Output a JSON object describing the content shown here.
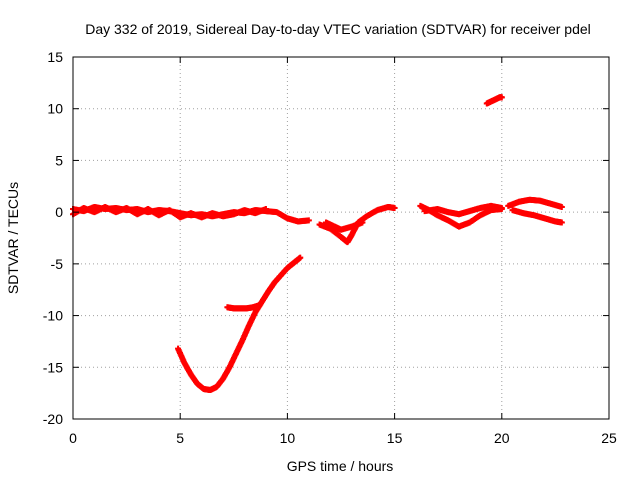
{
  "chart_data": {
    "type": "scatter",
    "title": "Day 332 of 2019, Sidereal Day-to-day VTEC variation (SDTVAR) for receiver pdel",
    "xlabel": "GPS time / hours",
    "ylabel": "SDTVAR / TECUs",
    "xlim": [
      0,
      25
    ],
    "ylim": [
      -20,
      15
    ],
    "xticks": [
      0,
      5,
      10,
      15,
      20,
      25
    ],
    "yticks": [
      -20,
      -15,
      -10,
      -5,
      0,
      5,
      10,
      15
    ],
    "grid": true,
    "marker_color": "#ff0000",
    "series": [
      {
        "name": "band-a",
        "points": [
          [
            0.0,
            0.3
          ],
          [
            0.5,
            0.1
          ],
          [
            1.0,
            0.5
          ],
          [
            1.5,
            0.3
          ],
          [
            2.0,
            0.4
          ],
          [
            2.5,
            0.2
          ],
          [
            3.0,
            0.3
          ],
          [
            3.5,
            0.0
          ],
          [
            4.0,
            0.2
          ],
          [
            4.5,
            0.1
          ],
          [
            5.0,
            -0.1
          ],
          [
            5.5,
            -0.3
          ],
          [
            6.0,
            -0.2
          ],
          [
            6.5,
            -0.4
          ],
          [
            7.0,
            -0.2
          ],
          [
            7.5,
            0.0
          ],
          [
            8.0,
            -0.1
          ],
          [
            8.5,
            0.2
          ],
          [
            9.0,
            0.1
          ],
          [
            9.5,
            0.0
          ],
          [
            10.0,
            -0.6
          ],
          [
            10.5,
            -0.9
          ],
          [
            11.0,
            -0.8
          ]
        ]
      },
      {
        "name": "band-b",
        "points": [
          [
            0.0,
            -0.2
          ],
          [
            0.5,
            0.4
          ],
          [
            1.0,
            0.0
          ],
          [
            1.5,
            0.5
          ],
          [
            2.0,
            0.0
          ],
          [
            2.5,
            0.4
          ],
          [
            3.0,
            -0.2
          ],
          [
            3.5,
            0.3
          ],
          [
            4.0,
            -0.3
          ],
          [
            4.5,
            0.2
          ],
          [
            5.0,
            -0.5
          ],
          [
            5.5,
            -0.1
          ],
          [
            6.0,
            -0.5
          ],
          [
            6.5,
            -0.1
          ],
          [
            7.0,
            -0.4
          ],
          [
            7.5,
            -0.2
          ],
          [
            8.0,
            0.2
          ],
          [
            8.5,
            -0.1
          ],
          [
            9.0,
            0.3
          ]
        ]
      },
      {
        "name": "band-c",
        "points": [
          [
            11.5,
            -1.2
          ],
          [
            12.0,
            -1.6
          ],
          [
            12.5,
            -2.4
          ],
          [
            12.8,
            -2.9
          ],
          [
            13.0,
            -2.2
          ],
          [
            13.3,
            -1.0
          ],
          [
            13.7,
            -0.4
          ],
          [
            14.2,
            0.2
          ],
          [
            14.7,
            0.5
          ],
          [
            15.0,
            0.4
          ]
        ]
      },
      {
        "name": "band-c2",
        "points": [
          [
            11.8,
            -1.0
          ],
          [
            12.2,
            -1.4
          ],
          [
            12.5,
            -1.7
          ],
          [
            13.0,
            -1.4
          ],
          [
            13.5,
            -1.0
          ]
        ]
      },
      {
        "name": "band-d",
        "points": [
          [
            16.2,
            0.6
          ],
          [
            16.6,
            0.2
          ],
          [
            17.0,
            -0.3
          ],
          [
            17.5,
            -0.8
          ],
          [
            18.0,
            -1.4
          ],
          [
            18.5,
            -1.0
          ],
          [
            19.0,
            -0.3
          ],
          [
            19.5,
            0.2
          ],
          [
            20.0,
            0.3
          ]
        ]
      },
      {
        "name": "band-d2",
        "points": [
          [
            16.4,
            0.1
          ],
          [
            17.0,
            0.3
          ],
          [
            17.5,
            0.0
          ],
          [
            18.0,
            -0.2
          ],
          [
            18.5,
            0.1
          ],
          [
            19.0,
            0.4
          ],
          [
            19.5,
            0.6
          ],
          [
            20.0,
            0.4
          ]
        ]
      },
      {
        "name": "band-e",
        "points": [
          [
            20.5,
            0.2
          ],
          [
            21.0,
            -0.1
          ],
          [
            21.5,
            -0.3
          ],
          [
            22.0,
            -0.6
          ],
          [
            22.5,
            -0.9
          ],
          [
            22.8,
            -1.0
          ]
        ]
      },
      {
        "name": "band-e2",
        "points": [
          [
            20.3,
            0.6
          ],
          [
            20.8,
            1.0
          ],
          [
            21.3,
            1.2
          ],
          [
            21.8,
            1.1
          ],
          [
            22.3,
            0.8
          ],
          [
            22.8,
            0.5
          ]
        ]
      },
      {
        "name": "isolated",
        "points": [
          [
            19.3,
            10.5
          ],
          [
            19.6,
            10.8
          ],
          [
            19.9,
            11.1
          ],
          [
            20.0,
            11.1
          ]
        ]
      },
      {
        "name": "dip-curve",
        "points": [
          [
            4.9,
            -13.2
          ],
          [
            5.2,
            -14.6
          ],
          [
            5.5,
            -15.7
          ],
          [
            5.8,
            -16.6
          ],
          [
            6.1,
            -17.1
          ],
          [
            6.4,
            -17.2
          ],
          [
            6.7,
            -16.9
          ],
          [
            7.0,
            -16.1
          ],
          [
            7.3,
            -15.0
          ],
          [
            7.6,
            -13.7
          ],
          [
            7.9,
            -12.4
          ],
          [
            8.2,
            -11.0
          ],
          [
            8.5,
            -9.7
          ],
          [
            8.8,
            -8.7
          ],
          [
            9.1,
            -7.7
          ],
          [
            9.4,
            -6.8
          ],
          [
            9.7,
            -6.1
          ],
          [
            10.0,
            -5.4
          ],
          [
            10.3,
            -4.9
          ],
          [
            10.6,
            -4.4
          ]
        ]
      },
      {
        "name": "short-flat",
        "points": [
          [
            7.2,
            -9.2
          ],
          [
            7.5,
            -9.3
          ],
          [
            7.8,
            -9.3
          ],
          [
            8.1,
            -9.3
          ],
          [
            8.4,
            -9.2
          ],
          [
            8.7,
            -9.0
          ]
        ]
      }
    ]
  }
}
